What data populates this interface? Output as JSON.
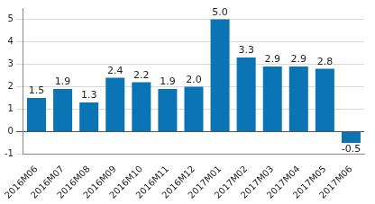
{
  "chart_data": {
    "type": "bar",
    "categories": [
      "2016M06",
      "2016M07",
      "2016M08",
      "2016M09",
      "2016M10",
      "2016M11",
      "2016M12",
      "2017M01",
      "2017M02",
      "2017M03",
      "2017M04",
      "2017M05",
      "2017M06"
    ],
    "values": [
      1.5,
      1.9,
      1.3,
      2.4,
      2.2,
      1.9,
      2.0,
      5.0,
      3.3,
      2.9,
      2.9,
      2.8,
      -0.5
    ],
    "value_labels": [
      "1.5",
      "1.9",
      "1.3",
      "2.4",
      "2.2",
      "1.9",
      "2.0",
      "5.0",
      "3.3",
      "2.9",
      "2.9",
      "2.8",
      "-0.5"
    ],
    "color": "#0a74b5",
    "ylim": [
      -1,
      5.5
    ],
    "yticks": [
      -1,
      0,
      1,
      2,
      3,
      4,
      5
    ],
    "grid": true,
    "data_labels": true
  }
}
